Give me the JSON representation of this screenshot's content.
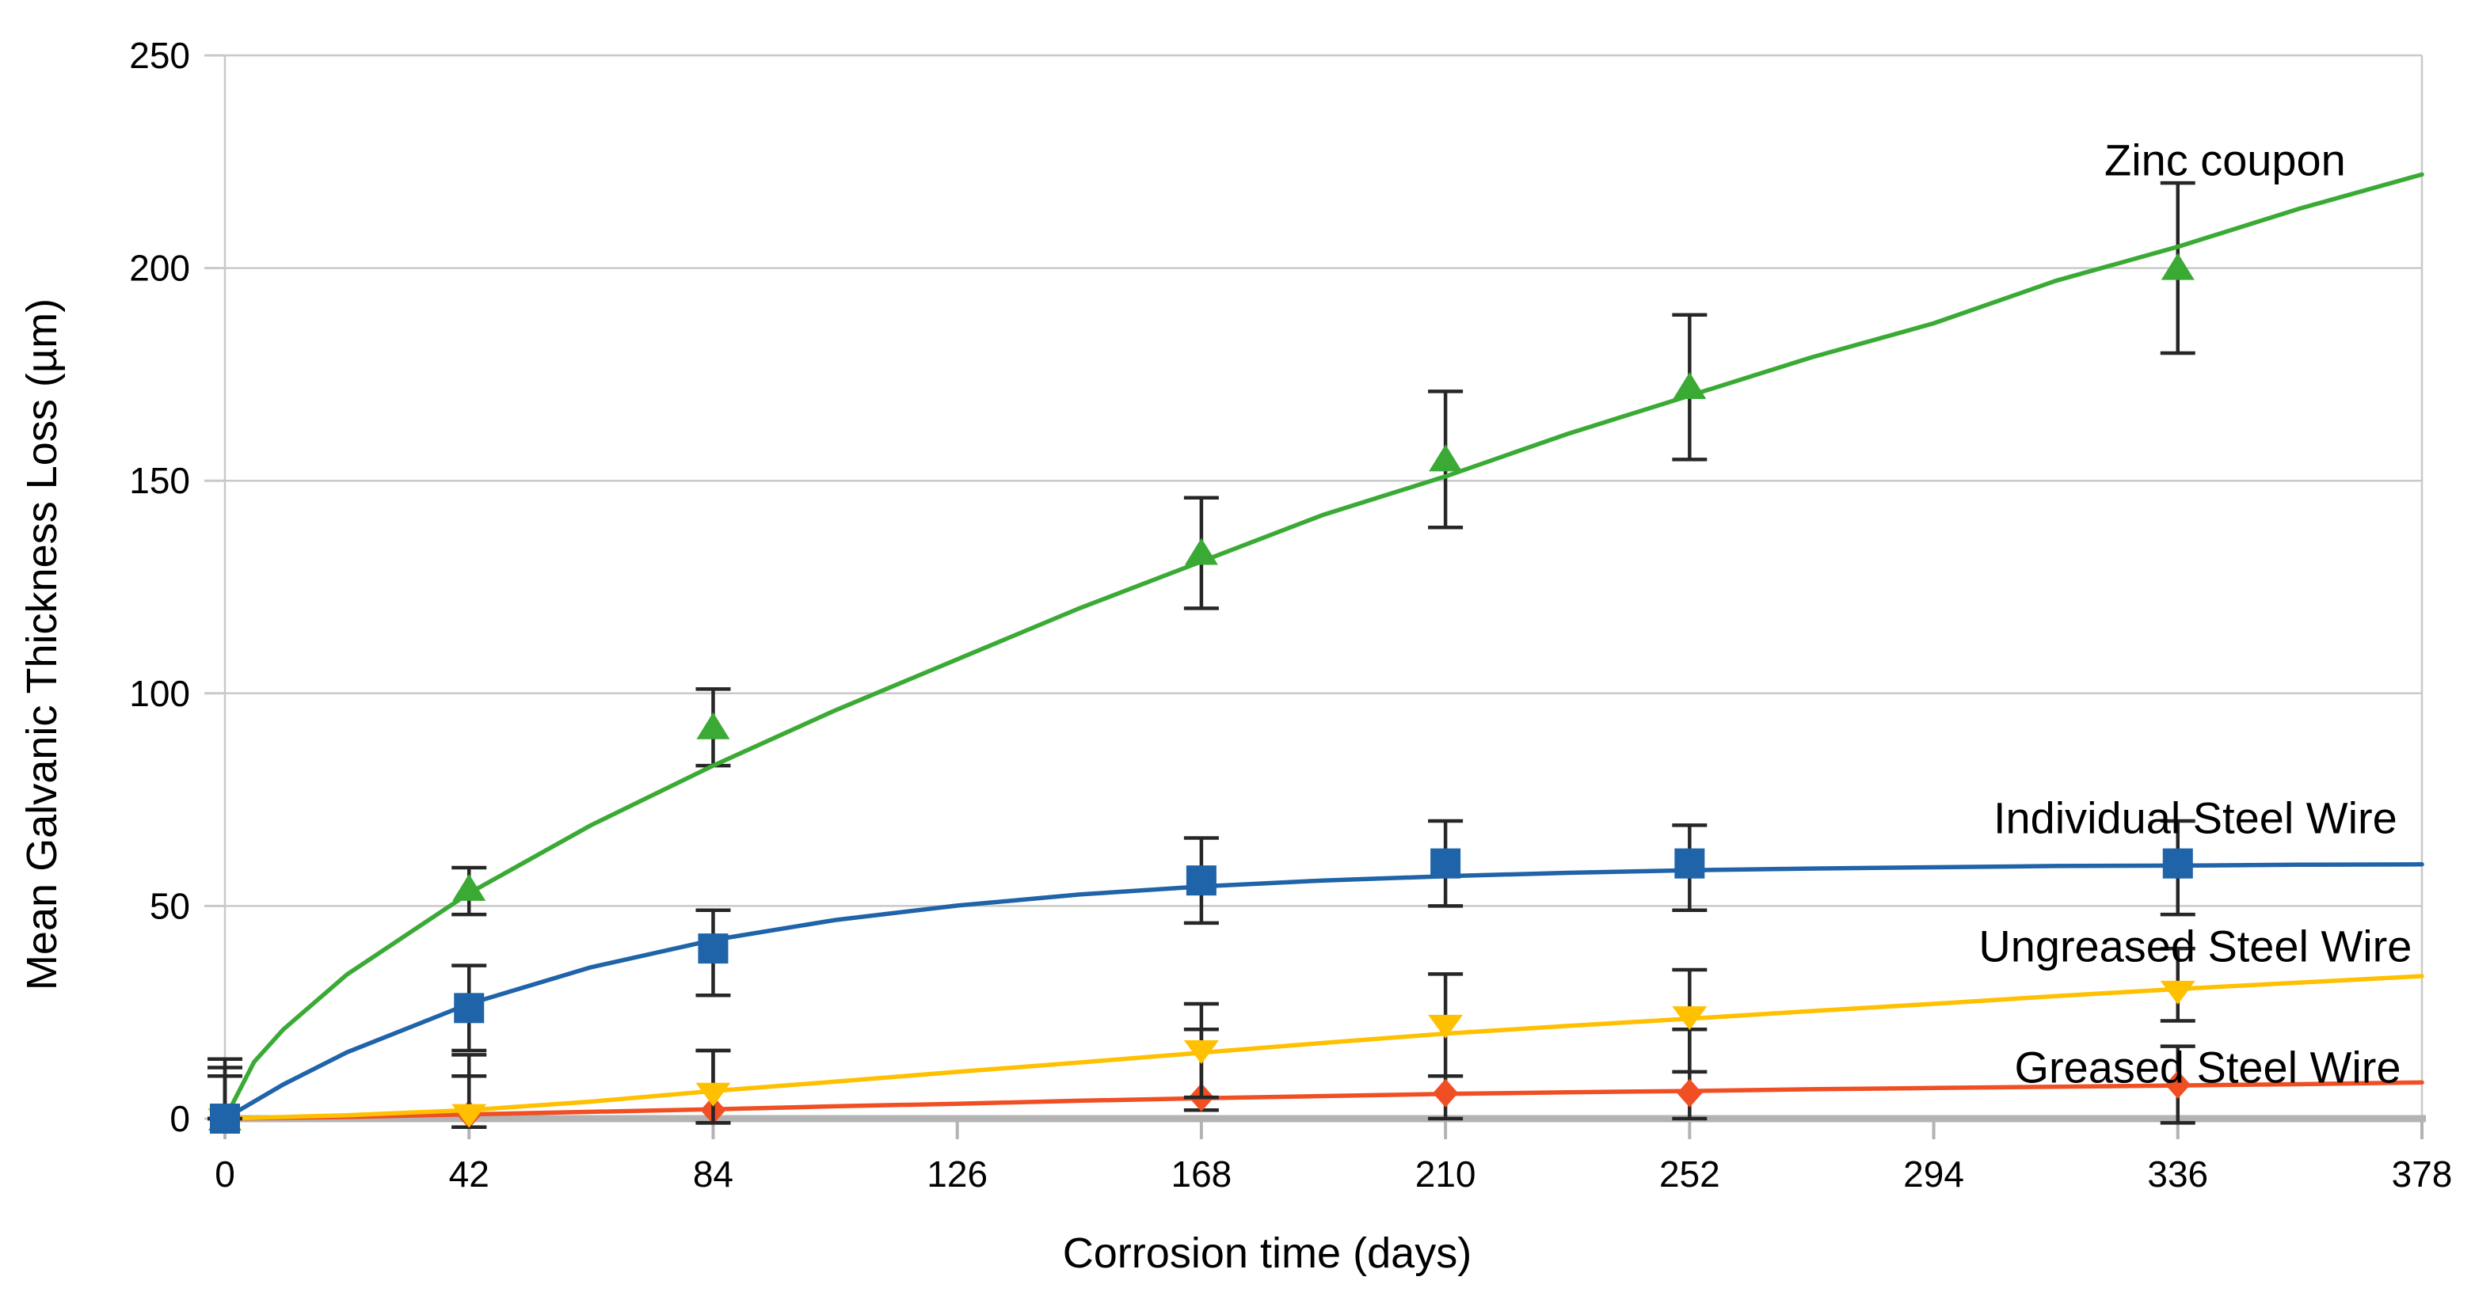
{
  "chart_data": {
    "type": "line",
    "title": "",
    "xlabel": "Corrosion time (days)",
    "ylabel": "Mean Galvanic Thickness Loss (µm)",
    "xlim": [
      0,
      378
    ],
    "ylim": [
      0,
      250
    ],
    "x_ticks": [
      0,
      42,
      84,
      126,
      168,
      210,
      252,
      294,
      336,
      378
    ],
    "y_ticks": [
      0,
      50,
      100,
      150,
      200,
      250
    ],
    "grid": "horizontal",
    "legend_position": "inline-annotations-right",
    "grid_color": "#c9c9c9",
    "axis_color": "#b3b3b3",
    "error_bar_color": "#262626",
    "series": [
      {
        "name": "Zinc coupon",
        "color": "#3aaa35",
        "marker": "triangle-up",
        "points": [
          [
            0,
            0,
            0,
            0
          ],
          [
            42,
            54,
            5,
            6
          ],
          [
            84,
            92,
            9,
            9
          ],
          [
            168,
            133,
            13,
            13
          ],
          [
            210,
            155,
            16,
            16
          ],
          [
            252,
            172,
            17,
            17
          ],
          [
            336,
            200,
            20,
            20
          ]
        ],
        "trend": [
          [
            0,
            0
          ],
          [
            5,
            13.3
          ],
          [
            10,
            20.9
          ],
          [
            21,
            33.9
          ],
          [
            42,
            53
          ],
          [
            63,
            69
          ],
          [
            84,
            83
          ],
          [
            105,
            96
          ],
          [
            126,
            108
          ],
          [
            147,
            120
          ],
          [
            168,
            131
          ],
          [
            189,
            142
          ],
          [
            210,
            151
          ],
          [
            231,
            161
          ],
          [
            252,
            170
          ],
          [
            273,
            179
          ],
          [
            294,
            187
          ],
          [
            315,
            197
          ],
          [
            336,
            205
          ],
          [
            357,
            214
          ],
          [
            378,
            222
          ]
        ]
      },
      {
        "name": "Individual Steel Wire",
        "color": "#1f63a8",
        "marker": "square",
        "points": [
          [
            0,
            0,
            14,
            0
          ],
          [
            42,
            26,
            10,
            10
          ],
          [
            84,
            40,
            9,
            11
          ],
          [
            168,
            56,
            10,
            10
          ],
          [
            210,
            60,
            10,
            10
          ],
          [
            252,
            60,
            9,
            11
          ],
          [
            336,
            60,
            10,
            12
          ]
        ],
        "trend": [
          [
            0,
            0
          ],
          [
            10,
            8
          ],
          [
            21,
            15.6
          ],
          [
            42,
            27
          ],
          [
            63,
            35.6
          ],
          [
            84,
            42
          ],
          [
            105,
            46.7
          ],
          [
            126,
            50.1
          ],
          [
            147,
            52.7
          ],
          [
            168,
            54.6
          ],
          [
            189,
            56
          ],
          [
            210,
            57
          ],
          [
            231,
            57.8
          ],
          [
            252,
            58.4
          ],
          [
            273,
            58.8
          ],
          [
            294,
            59.1
          ],
          [
            315,
            59.4
          ],
          [
            336,
            59.5
          ],
          [
            357,
            59.7
          ],
          [
            378,
            59.8
          ]
        ]
      },
      {
        "name": "Ungreased Steel Wire",
        "color": "#ffc000",
        "marker": "triangle-down",
        "points": [
          [
            0,
            0,
            12,
            0
          ],
          [
            42,
            1,
            14,
            3
          ],
          [
            84,
            6,
            10,
            7
          ],
          [
            168,
            16,
            11,
            11
          ],
          [
            210,
            22,
            12,
            12
          ],
          [
            252,
            24,
            11,
            13
          ],
          [
            336,
            30,
            10,
            7
          ]
        ],
        "trend": [
          [
            0,
            0
          ],
          [
            21,
            0.8
          ],
          [
            42,
            2
          ],
          [
            63,
            4
          ],
          [
            84,
            6.5
          ],
          [
            105,
            8.7
          ],
          [
            126,
            11
          ],
          [
            147,
            13.2
          ],
          [
            168,
            15.5
          ],
          [
            189,
            17.8
          ],
          [
            210,
            20
          ],
          [
            231,
            21.8
          ],
          [
            252,
            23.5
          ],
          [
            273,
            25.3
          ],
          [
            294,
            27
          ],
          [
            315,
            28.8
          ],
          [
            336,
            30.5
          ],
          [
            357,
            32
          ],
          [
            378,
            33.5
          ]
        ]
      },
      {
        "name": "Greased Steel Wire",
        "color": "#f04e23",
        "marker": "diamond",
        "points": [
          [
            0,
            0,
            10,
            0
          ],
          [
            42,
            1,
            9,
            3
          ],
          [
            84,
            2,
            14,
            3
          ],
          [
            168,
            5,
            16,
            3
          ],
          [
            210,
            6,
            4,
            6
          ],
          [
            252,
            6,
            15,
            6
          ],
          [
            336,
            8,
            9,
            9
          ]
        ],
        "trend": [
          [
            0,
            0
          ],
          [
            21,
            0.4
          ],
          [
            42,
            1
          ],
          [
            63,
            1.6
          ],
          [
            84,
            2.2
          ],
          [
            105,
            2.9
          ],
          [
            126,
            3.5
          ],
          [
            147,
            4.2
          ],
          [
            168,
            4.8
          ],
          [
            189,
            5.3
          ],
          [
            210,
            5.8
          ],
          [
            231,
            6.2
          ],
          [
            252,
            6.5
          ],
          [
            273,
            6.9
          ],
          [
            294,
            7.2
          ],
          [
            315,
            7.5
          ],
          [
            336,
            7.8
          ],
          [
            357,
            8.1
          ],
          [
            378,
            8.5
          ]
        ]
      }
    ]
  }
}
